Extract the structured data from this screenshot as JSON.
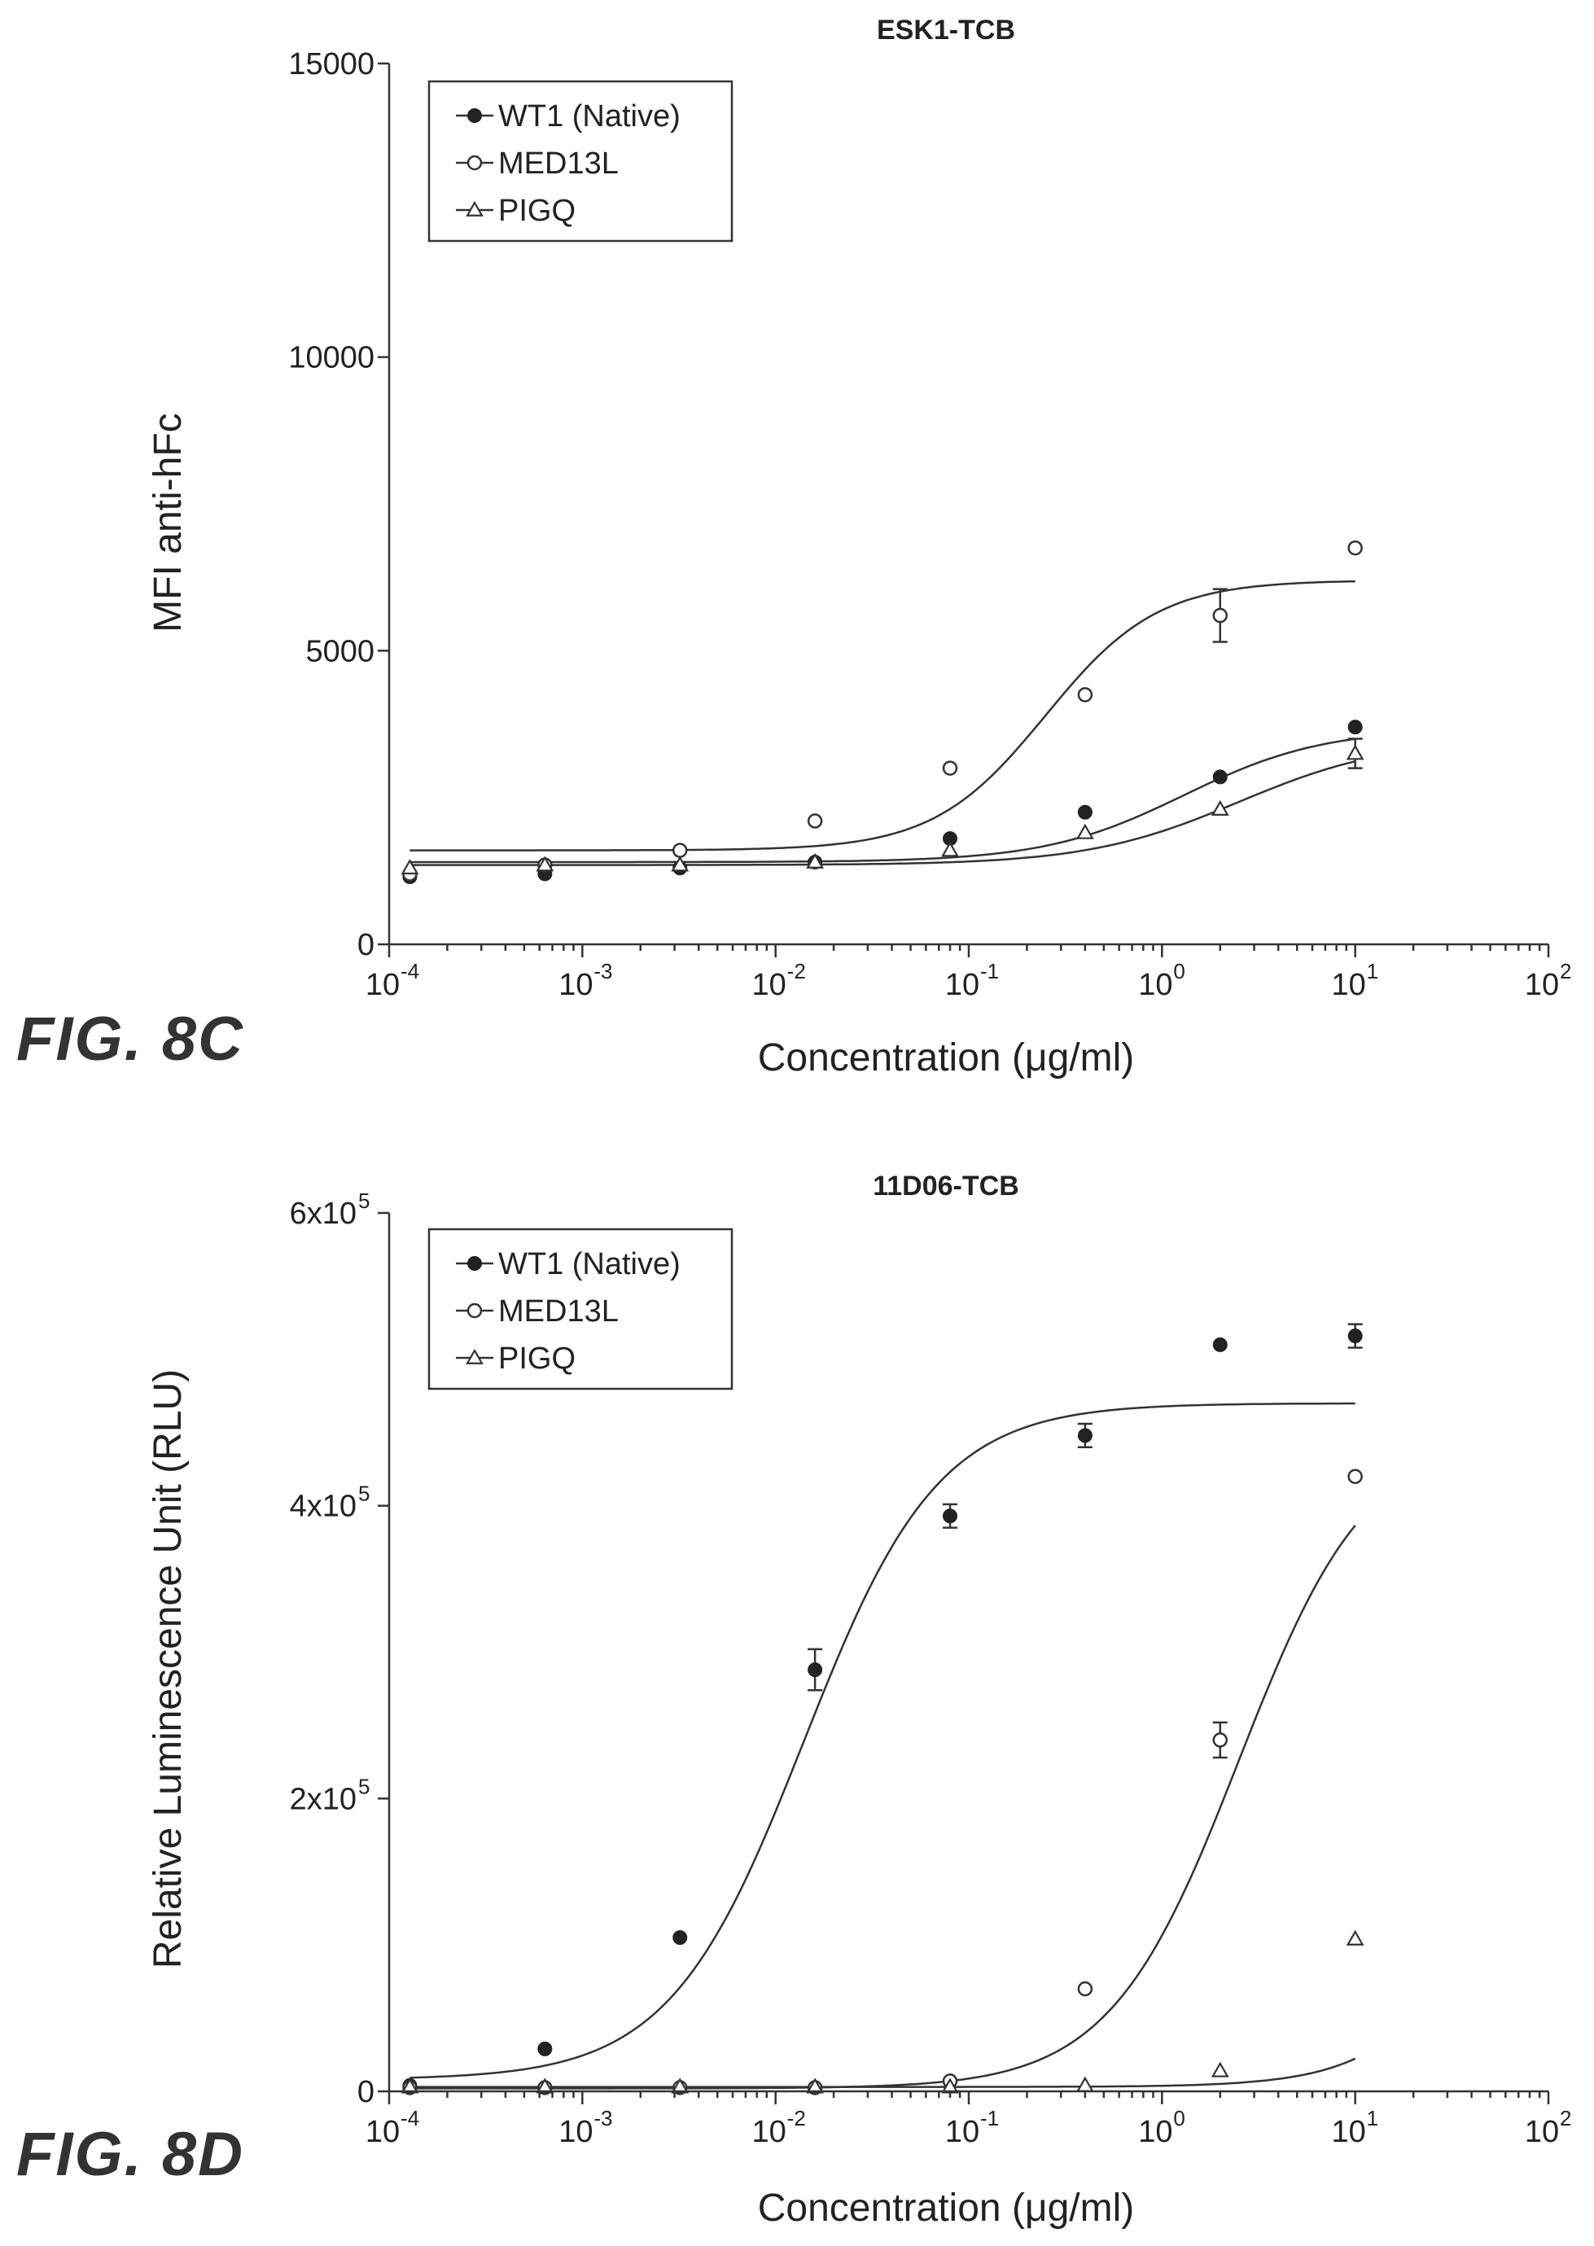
{
  "chart_data": [
    {
      "type": "scatter",
      "title": "ESK1-TCB",
      "figure_label": "FIG. 8C",
      "xlabel": "Concentration (μg/ml)",
      "ylabel": "MFI anti-hFc",
      "xscale": "log",
      "xlim": [
        0.0001,
        100
      ],
      "ylim": [
        0,
        15000
      ],
      "x_ticks": [
        {
          "base": "10",
          "exp": "-4"
        },
        {
          "base": "10",
          "exp": "-3"
        },
        {
          "base": "10",
          "exp": "-2"
        },
        {
          "base": "10",
          "exp": "-1"
        },
        {
          "base": "10",
          "exp": "0"
        },
        {
          "base": "10",
          "exp": "1"
        },
        {
          "base": "10",
          "exp": "2"
        }
      ],
      "y_ticks": [
        {
          "value": 0,
          "label": "0"
        },
        {
          "value": 5000,
          "label": "5000"
        },
        {
          "value": 10000,
          "label": "10000"
        },
        {
          "value": 15000,
          "label": "15000"
        }
      ],
      "legend_position": "top-left",
      "series": [
        {
          "name": "WT1 (Native)",
          "marker": "filled-circle",
          "x": [
            0.000128,
            0.00064,
            0.0032,
            0.016,
            0.08,
            0.4,
            2,
            10
          ],
          "y": [
            1150,
            1200,
            1300,
            1400,
            1800,
            2250,
            2850,
            3700
          ],
          "err": [
            0,
            0,
            0,
            0,
            0,
            0,
            0,
            0
          ],
          "fit": {
            "bottom": 1400,
            "top": 3680,
            "ec50": 1.3,
            "hill": 1.2
          }
        },
        {
          "name": "MED13L",
          "marker": "open-circle",
          "x": [
            0.000128,
            0.00064,
            0.0032,
            0.016,
            0.08,
            0.4,
            2,
            10
          ],
          "y": [
            1200,
            1350,
            1600,
            2100,
            3000,
            4250,
            5600,
            6750
          ],
          "err": [
            0,
            0,
            0,
            0,
            0,
            0,
            450,
            0
          ],
          "fit": {
            "bottom": 1600,
            "top": 6200,
            "ec50": 0.25,
            "hill": 1.5
          }
        },
        {
          "name": "PIGQ",
          "marker": "open-triangle",
          "x": [
            0.000128,
            0.00064,
            0.0032,
            0.016,
            0.08,
            0.4,
            2,
            10
          ],
          "y": [
            1300,
            1350,
            1350,
            1400,
            1600,
            1900,
            2300,
            3250
          ],
          "err": [
            0,
            0,
            0,
            0,
            0,
            0,
            0,
            250
          ],
          "fit": {
            "bottom": 1350,
            "top": 3500,
            "ec50": 2.5,
            "hill": 1.1
          }
        }
      ]
    },
    {
      "type": "scatter",
      "title": "11D06-TCB",
      "figure_label": "FIG. 8D",
      "xlabel": "Concentration (μg/ml)",
      "ylabel": "Relative Luminescence Unit (RLU)",
      "xscale": "log",
      "xlim": [
        0.0001,
        100
      ],
      "ylim": [
        0,
        600000
      ],
      "x_ticks": [
        {
          "base": "10",
          "exp": "-4"
        },
        {
          "base": "10",
          "exp": "-3"
        },
        {
          "base": "10",
          "exp": "-2"
        },
        {
          "base": "10",
          "exp": "-1"
        },
        {
          "base": "10",
          "exp": "0"
        },
        {
          "base": "10",
          "exp": "1"
        },
        {
          "base": "10",
          "exp": "2"
        }
      ],
      "y_ticks": [
        {
          "value": 0,
          "label": "0"
        },
        {
          "value": 200000,
          "label": "2x10",
          "exp": "5"
        },
        {
          "value": 400000,
          "label": "4x10",
          "exp": "5"
        },
        {
          "value": 600000,
          "label": "6x10",
          "exp": "5"
        }
      ],
      "legend_position": "top-left",
      "series": [
        {
          "name": "WT1 (Native)",
          "marker": "filled-circle",
          "x": [
            0.000128,
            0.00064,
            0.0032,
            0.016,
            0.08,
            0.4,
            2,
            10
          ],
          "y": [
            4000,
            29000,
            105000,
            288000,
            393000,
            448000,
            510000,
            516000
          ],
          "err": [
            0,
            0,
            0,
            14000,
            8000,
            8000,
            0,
            8000
          ],
          "fit": {
            "bottom": 8000,
            "top": 470000,
            "ec50": 0.014,
            "hill": 1.25
          }
        },
        {
          "name": "MED13L",
          "marker": "open-circle",
          "x": [
            0.000128,
            0.00064,
            0.0032,
            0.016,
            0.08,
            0.4,
            2,
            10
          ],
          "y": [
            2500,
            2500,
            2500,
            2500,
            7000,
            70000,
            240000,
            420000
          ],
          "err": [
            0,
            0,
            0,
            0,
            0,
            0,
            12000,
            0
          ],
          "fit": {
            "bottom": 2000,
            "top": 450000,
            "ec50": 2.5,
            "hill": 1.3
          }
        },
        {
          "name": "PIGQ",
          "marker": "open-triangle",
          "x": [
            0.000128,
            0.00064,
            0.0032,
            0.016,
            0.08,
            0.4,
            2,
            10
          ],
          "y": [
            3000,
            3000,
            3000,
            3000,
            3000,
            4000,
            14000,
            104000
          ],
          "err": [
            0,
            0,
            0,
            0,
            0,
            0,
            0,
            0
          ],
          "fit": {
            "bottom": 3000,
            "top": 800000,
            "ec50": 140,
            "hill": 1.4
          }
        }
      ]
    }
  ]
}
